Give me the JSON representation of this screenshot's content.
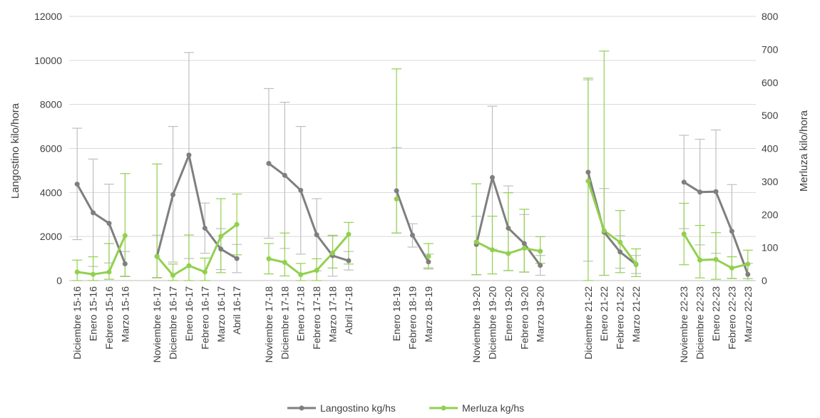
{
  "chart_data": {
    "type": "line",
    "title": "",
    "ylabel_left": "Langostino kilo/hora",
    "ylabel_right": "Merluza kilo/hora",
    "y_left_lim": [
      0,
      12000
    ],
    "y_left_ticks": [
      "0",
      "2000",
      "4000",
      "6000",
      "8000",
      "10000",
      "12000"
    ],
    "y_right_lim": [
      0,
      800
    ],
    "y_right_ticks": [
      "0",
      "100",
      "200",
      "300",
      "400",
      "500",
      "600",
      "700",
      "800"
    ],
    "grid": "horizontal",
    "legend_position": "bottom",
    "categories": [
      "Diciembre 15-16",
      "Enero 15-16",
      "Febrero 15-16",
      "Marzo 15-16",
      "",
      "Noviembre 16-17",
      "Diciembre 16-17",
      "Enero 16-17",
      "Febrero 16-17",
      "Marzo 16-17",
      "Abril 16-17",
      "",
      "Noviembre 17-18",
      "Diciembre 17-18",
      "Enero 17-18",
      "Febrero 17-18",
      "Marzo 17-18",
      "Abril 17-18",
      "",
      "",
      "Enero 18-19",
      "Febrero 18-19",
      "Marzo 18-19",
      "",
      "",
      "Noviembre 19-20",
      "Diciembre 19-20",
      "Enero 19-20",
      "Febrero 19-20",
      "Marzo 19-20",
      "",
      "",
      "Diciembre 21-22",
      "Enero 21-22",
      "Febrero 21-22",
      "Marzo 21-22",
      "",
      "",
      "Noviembre 22-23",
      "Diciembre 22-23",
      "Enero 22-23",
      "Febrero 22-23",
      "Marzo 22-23"
    ],
    "series": [
      {
        "name": "Langostino kg/hs",
        "axis": "left",
        "color": "#7f7f7f",
        "values": [
          4380,
          3080,
          2600,
          760,
          null,
          1100,
          3900,
          5700,
          2380,
          1430,
          1000,
          null,
          5320,
          4780,
          4100,
          2080,
          1130,
          900,
          null,
          null,
          4080,
          2060,
          850,
          null,
          null,
          1640,
          4680,
          2380,
          1680,
          690,
          null,
          null,
          4920,
          2200,
          1300,
          730,
          null,
          null,
          4470,
          4020,
          4040,
          2240,
          280
        ],
        "error_high": [
          6920,
          5520,
          4380,
          1320,
          null,
          2060,
          7000,
          10360,
          3520,
          2360,
          1640,
          null,
          8720,
          8100,
          7000,
          3720,
          2060,
          1320,
          null,
          null,
          6040,
          2580,
          1200,
          null,
          null,
          2920,
          7920,
          4300,
          3000,
          1140,
          null,
          null,
          9120,
          4180,
          2040,
          1140,
          null,
          null,
          6600,
          6420,
          6840,
          4360,
          780
        ],
        "error_low": [
          1860,
          640,
          800,
          200,
          null,
          140,
          840,
          1000,
          1240,
          500,
          360,
          null,
          1920,
          1460,
          1200,
          440,
          200,
          480,
          null,
          null,
          2160,
          1520,
          520,
          null,
          null,
          260,
          1420,
          460,
          380,
          240,
          null,
          null,
          880,
          240,
          560,
          320,
          null,
          null,
          2360,
          1620,
          1240,
          100,
          0
        ]
      },
      {
        "name": "Merluza kg/hs",
        "axis": "right",
        "color": "#92d050",
        "values": [
          26,
          19,
          26,
          136,
          null,
          73,
          16,
          45,
          26,
          134,
          170,
          null,
          66,
          55,
          18,
          31,
          83,
          140,
          null,
          null,
          247,
          null,
          73,
          null,
          null,
          117,
          93,
          82,
          98,
          89,
          null,
          null,
          301,
          151,
          116,
          50,
          null,
          null,
          141,
          62,
          64,
          38,
          50
        ],
        "error_high": [
          62,
          72,
          112,
          324,
          null,
          353,
          50,
          138,
          68,
          248,
          262,
          null,
          112,
          144,
          52,
          66,
          136,
          176,
          null,
          null,
          641,
          null,
          112,
          null,
          null,
          293,
          195,
          266,
          216,
          133,
          null,
          null,
          613,
          695,
          212,
          96,
          null,
          null,
          234,
          167,
          145,
          72,
          92
        ],
        "error_low": [
          0,
          0,
          4,
          12,
          null,
          8,
          0,
          0,
          0,
          24,
          78,
          null,
          20,
          14,
          0,
          0,
          38,
          50,
          null,
          null,
          144,
          null,
          38,
          null,
          null,
          18,
          20,
          30,
          26,
          52,
          null,
          null,
          0,
          16,
          24,
          12,
          null,
          null,
          48,
          8,
          4,
          6,
          6
        ]
      }
    ]
  }
}
